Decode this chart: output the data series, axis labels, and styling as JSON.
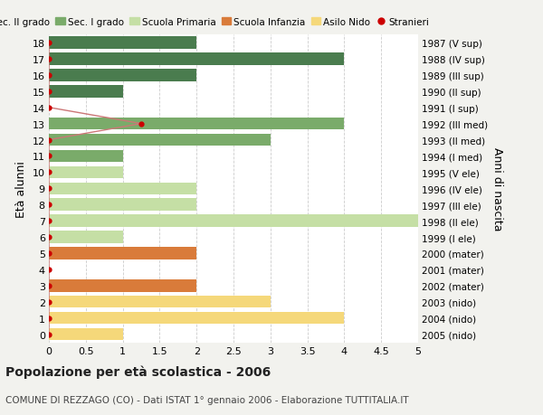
{
  "ages": [
    18,
    17,
    16,
    15,
    14,
    13,
    12,
    11,
    10,
    9,
    8,
    7,
    6,
    5,
    4,
    3,
    2,
    1,
    0
  ],
  "years": [
    "1987 (V sup)",
    "1988 (IV sup)",
    "1989 (III sup)",
    "1990 (II sup)",
    "1991 (I sup)",
    "1992 (III med)",
    "1993 (II med)",
    "1994 (I med)",
    "1995 (V ele)",
    "1996 (IV ele)",
    "1997 (III ele)",
    "1998 (II ele)",
    "1999 (I ele)",
    "2000 (mater)",
    "2001 (mater)",
    "2002 (mater)",
    "2003 (nido)",
    "2004 (nido)",
    "2005 (nido)"
  ],
  "bar_values": [
    2,
    4,
    2,
    1,
    0,
    4,
    3,
    1,
    1,
    2,
    2,
    5,
    1,
    2,
    0,
    2,
    3,
    4,
    1
  ],
  "bar_colors": [
    "#4a7c4e",
    "#4a7c4e",
    "#4a7c4e",
    "#4a7c4e",
    "#4a7c4e",
    "#7aab6a",
    "#7aab6a",
    "#7aab6a",
    "#c5dfa5",
    "#c5dfa5",
    "#c5dfa5",
    "#c5dfa5",
    "#c5dfa5",
    "#d97b3a",
    "#d97b3a",
    "#d97b3a",
    "#f5d87a",
    "#f5d87a",
    "#f5d87a"
  ],
  "legend_labels": [
    "Sec. II grado",
    "Sec. I grado",
    "Scuola Primaria",
    "Scuola Infanzia",
    "Asilo Nido",
    "Stranieri"
  ],
  "legend_colors": [
    "#4a7c4e",
    "#7aab6a",
    "#c5dfa5",
    "#d97b3a",
    "#f5d87a",
    "#cc0000"
  ],
  "title": "Popolazione per età scolastica - 2006",
  "subtitle": "COMUNE DI REZZAGO (CO) - Dati ISTAT 1° gennaio 2006 - Elaborazione TUTTITALIA.IT",
  "ylabel_left": "Età alunni",
  "ylabel_right": "Anni di nascita",
  "xlim": [
    0,
    5.0
  ],
  "xticks": [
    0,
    0.5,
    1.0,
    1.5,
    2.0,
    2.5,
    3.0,
    3.5,
    4.0,
    4.5,
    5.0
  ],
  "bg_color": "#f2f2ee",
  "plot_bg_color": "#ffffff",
  "stranieri_dot_color": "#cc0000",
  "stranieri_line_color": "#cc7777",
  "stranieri_dot_ages": [
    18,
    17,
    16,
    15,
    14,
    13,
    12,
    11,
    10,
    9,
    8,
    7,
    6,
    5,
    4,
    3,
    2,
    1,
    0
  ],
  "stranieri_dot_x": [
    0,
    0,
    0,
    0,
    0,
    1.25,
    0,
    0,
    0,
    0,
    0,
    0,
    0,
    0,
    0,
    0,
    0,
    0,
    0
  ],
  "bar_height": 0.75
}
